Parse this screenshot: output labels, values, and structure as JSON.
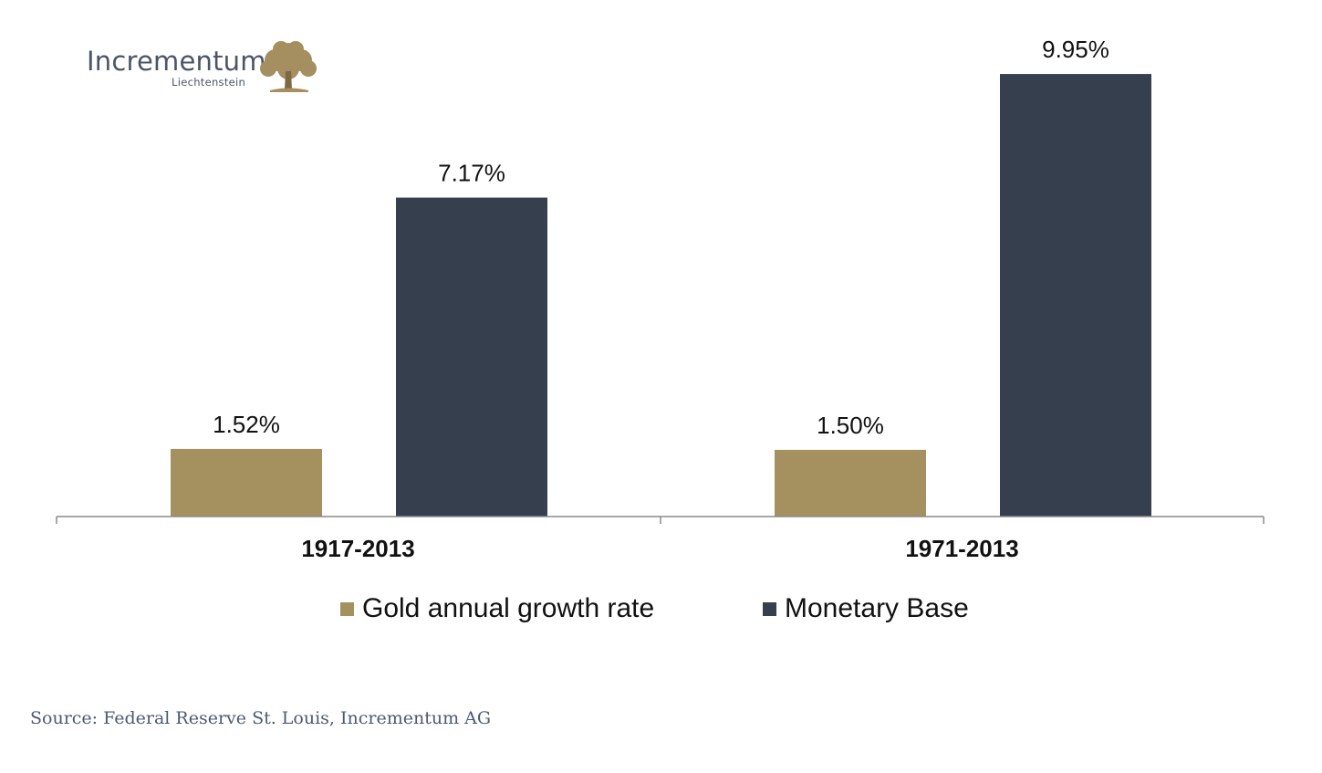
{
  "logo": {
    "name": "Incrementum",
    "subtitle": "Liechtenstein",
    "icon": "tree-icon",
    "color": "#4a5566",
    "icon_color": "#a58e5f"
  },
  "chart_data": {
    "type": "bar",
    "categories": [
      "1917-2013",
      "1971-2013"
    ],
    "series": [
      {
        "name": "Gold annual growth rate",
        "values": [
          1.52,
          1.5
        ],
        "labels": [
          "1.52%",
          "1.50%"
        ],
        "color": "#a4915f"
      },
      {
        "name": "Monetary Base",
        "values": [
          7.17,
          9.95
        ],
        "labels": [
          "7.17%",
          "9.95%"
        ],
        "color": "#353f4e"
      }
    ],
    "title": "",
    "xlabel": "",
    "ylabel": "",
    "ylim": [
      0,
      10
    ],
    "grid": false,
    "legend": "bottom"
  },
  "source": "Source: Federal Reserve St. Louis, Incrementum AG"
}
